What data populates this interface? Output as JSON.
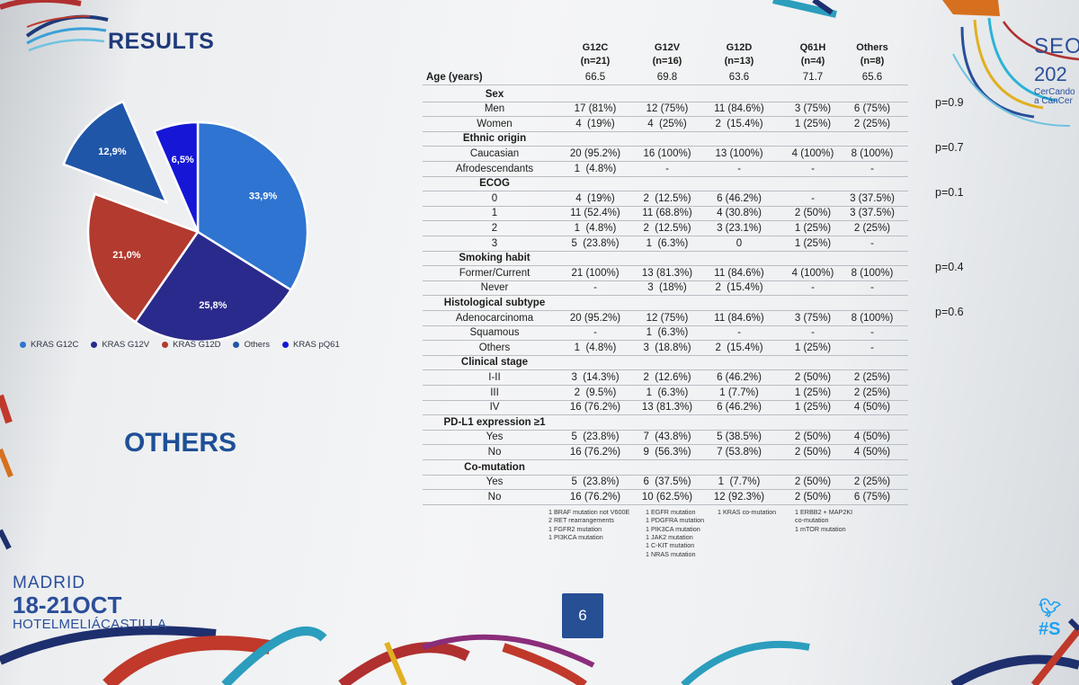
{
  "slide": {
    "title": "RESULTS",
    "subtitle": "OTHERS",
    "page_number": "6",
    "event_city": "MADRID",
    "event_dates": "18-21OCT",
    "event_venue": "HOTELMELIÁCASTILLA",
    "brand_partial": "SEOI",
    "brand_year_partial": "202",
    "brand_tagline": "CerCando\na CánCer",
    "twitter_partial": "#S",
    "colors": {
      "title": "#1f3a7a",
      "page_box": "#274f94",
      "accent": "#2a4e9a"
    },
    "icons": [
      "twitter-bird-icon",
      "seom-logo-swirl"
    ]
  },
  "chart_data": {
    "type": "pie",
    "title": "",
    "legend_position": "bottom",
    "slices": [
      {
        "label": "KRAS G12C",
        "value": 33.9,
        "text": "33,9%",
        "color": "#2f74d0",
        "exploded": false
      },
      {
        "label": "KRAS G12V",
        "value": 25.8,
        "text": "25,8%",
        "color": "#2a2a8c",
        "exploded": false
      },
      {
        "label": "KRAS G12D",
        "value": 21.0,
        "text": "21,0%",
        "color": "#b23a2e",
        "exploded": false
      },
      {
        "label": "Others",
        "value": 12.9,
        "text": "12,9%",
        "color": "#1f56a8",
        "exploded": true
      },
      {
        "label": "KRAS pQ61",
        "value": 6.5,
        "text": "6,5%",
        "color": "#1616d6",
        "exploded": false
      }
    ],
    "legend_order": [
      0,
      1,
      2,
      3,
      4
    ]
  },
  "table": {
    "columns": [
      {
        "name": "G12C",
        "n": "(n=21)"
      },
      {
        "name": "G12V",
        "n": "(n=16)"
      },
      {
        "name": "G12D",
        "n": "(n=13)"
      },
      {
        "name": "Q61H",
        "n": "(n=4)"
      },
      {
        "name": "Others",
        "n": "(n=8)"
      }
    ],
    "rows": [
      {
        "label": "Age (years)",
        "kind": "metric",
        "values": [
          "66.5",
          "69.8",
          "63.6",
          "71.7",
          "65.6"
        ]
      },
      {
        "label": "Sex",
        "kind": "group",
        "values": [
          "",
          "",
          "",
          "",
          ""
        ]
      },
      {
        "label": "Men",
        "kind": "item",
        "values": [
          "17 (81%)",
          "12 (75%)",
          "11 (84.6%)",
          "3 (75%)",
          "6 (75%)"
        ]
      },
      {
        "label": "Women",
        "kind": "item",
        "values": [
          "4  (19%)",
          "4  (25%)",
          "2  (15.4%)",
          "1 (25%)",
          "2 (25%)"
        ]
      },
      {
        "label": "Ethnic origin",
        "kind": "group",
        "values": [
          "",
          "",
          "",
          "",
          ""
        ]
      },
      {
        "label": "Caucasian",
        "kind": "item",
        "values": [
          "20 (95.2%)",
          "16 (100%)",
          "13 (100%)",
          "4 (100%)",
          "8 (100%)"
        ]
      },
      {
        "label": "Afrodescendants",
        "kind": "item",
        "values": [
          "1  (4.8%)",
          "-",
          "-",
          "-",
          "-"
        ]
      },
      {
        "label": "ECOG",
        "kind": "group",
        "values": [
          "",
          "",
          "",
          "",
          ""
        ]
      },
      {
        "label": "0",
        "kind": "item",
        "values": [
          "4  (19%)",
          "2  (12.5%)",
          "6 (46.2%)",
          "-",
          "3 (37.5%)"
        ]
      },
      {
        "label": "1",
        "kind": "item",
        "values": [
          "11 (52.4%)",
          "11 (68.8%)",
          "4 (30.8%)",
          "2 (50%)",
          "3 (37.5%)"
        ]
      },
      {
        "label": "2",
        "kind": "item",
        "values": [
          "1  (4.8%)",
          "2  (12.5%)",
          "3 (23.1%)",
          "1 (25%)",
          "2 (25%)"
        ]
      },
      {
        "label": "3",
        "kind": "item",
        "values": [
          "5  (23.8%)",
          "1  (6.3%)",
          "0",
          "1 (25%)",
          "-"
        ]
      },
      {
        "label": "Smoking habit",
        "kind": "group",
        "values": [
          "",
          "",
          "",
          "",
          ""
        ]
      },
      {
        "label": "Former/Current",
        "kind": "item",
        "values": [
          "21 (100%)",
          "13 (81.3%)",
          "11 (84.6%)",
          "4 (100%)",
          "8 (100%)"
        ]
      },
      {
        "label": "Never",
        "kind": "item",
        "values": [
          "-",
          "3  (18%)",
          "2  (15.4%)",
          "-",
          "-"
        ]
      },
      {
        "label": "Histological subtype",
        "kind": "group",
        "values": [
          "",
          "",
          "",
          "",
          ""
        ]
      },
      {
        "label": "Adenocarcinoma",
        "kind": "item",
        "values": [
          "20 (95.2%)",
          "12 (75%)",
          "11 (84.6%)",
          "3 (75%)",
          "8 (100%)"
        ]
      },
      {
        "label": "Squamous",
        "kind": "item",
        "values": [
          "-",
          "1  (6.3%)",
          "-",
          "-",
          "-"
        ]
      },
      {
        "label": "Others",
        "kind": "item",
        "values": [
          "1  (4.8%)",
          "3  (18.8%)",
          "2  (15.4%)",
          "1 (25%)",
          "-"
        ]
      },
      {
        "label": "Clinical stage",
        "kind": "group",
        "values": [
          "",
          "",
          "",
          "",
          ""
        ]
      },
      {
        "label": "I-II",
        "kind": "item",
        "values": [
          "3  (14.3%)",
          "2  (12.6%)",
          "6 (46.2%)",
          "2 (50%)",
          "2 (25%)"
        ]
      },
      {
        "label": "III",
        "kind": "item",
        "values": [
          "2  (9.5%)",
          "1  (6.3%)",
          "1 (7.7%)",
          "1 (25%)",
          "2 (25%)"
        ]
      },
      {
        "label": "IV",
        "kind": "item",
        "values": [
          "16 (76.2%)",
          "13 (81.3%)",
          "6 (46.2%)",
          "1 (25%)",
          "4 (50%)"
        ]
      },
      {
        "label": "PD-L1 expression ≥1",
        "kind": "group",
        "values": [
          "",
          "",
          "",
          "",
          ""
        ]
      },
      {
        "label": "Yes",
        "kind": "item",
        "values": [
          "5  (23.8%)",
          "7  (43.8%)",
          "5 (38.5%)",
          "2 (50%)",
          "4 (50%)"
        ]
      },
      {
        "label": "No",
        "kind": "item",
        "values": [
          "16 (76.2%)",
          "9  (56.3%)",
          "7 (53.8%)",
          "2 (50%)",
          "4 (50%)"
        ]
      },
      {
        "label": "Co-mutation",
        "kind": "group",
        "values": [
          "",
          "",
          "",
          "",
          ""
        ]
      },
      {
        "label": "Yes",
        "kind": "item",
        "values": [
          "5  (23.8%)",
          "6  (37.5%)",
          "1  (7.7%)",
          "2 (50%)",
          "2 (25%)"
        ]
      },
      {
        "label": "No",
        "kind": "item",
        "values": [
          "16 (76.2%)",
          "10 (62.5%)",
          "12 (92.3%)",
          "2 (50%)",
          "6 (75%)"
        ]
      }
    ],
    "p_values": [
      {
        "text": "p=0.9",
        "row": 2
      },
      {
        "text": "p=0.7",
        "row": 5
      },
      {
        "text": "p=0.1",
        "row": 8
      },
      {
        "text": "p=0.4",
        "row": 13
      },
      {
        "text": "p=0.6",
        "row": 16
      }
    ],
    "footnotes": [
      [
        "1 BRAF mutation not V600E",
        "2 RET  rearrangements",
        "1 FGFR2 mutation",
        "1 PI3KCA mutation"
      ],
      [
        "1 EGFR mutation",
        "1 PDGFRA mutation",
        "1 PIK3CA mutation",
        "1 JAK2 mutation",
        "1 C-KIT mutation",
        "1 NRAS mutation"
      ],
      [
        "1 KRAS co-mutation"
      ],
      [
        "1 ERBB2 + MAP2KI",
        "co-mutation",
        "1 mTOR mutation"
      ],
      []
    ]
  }
}
